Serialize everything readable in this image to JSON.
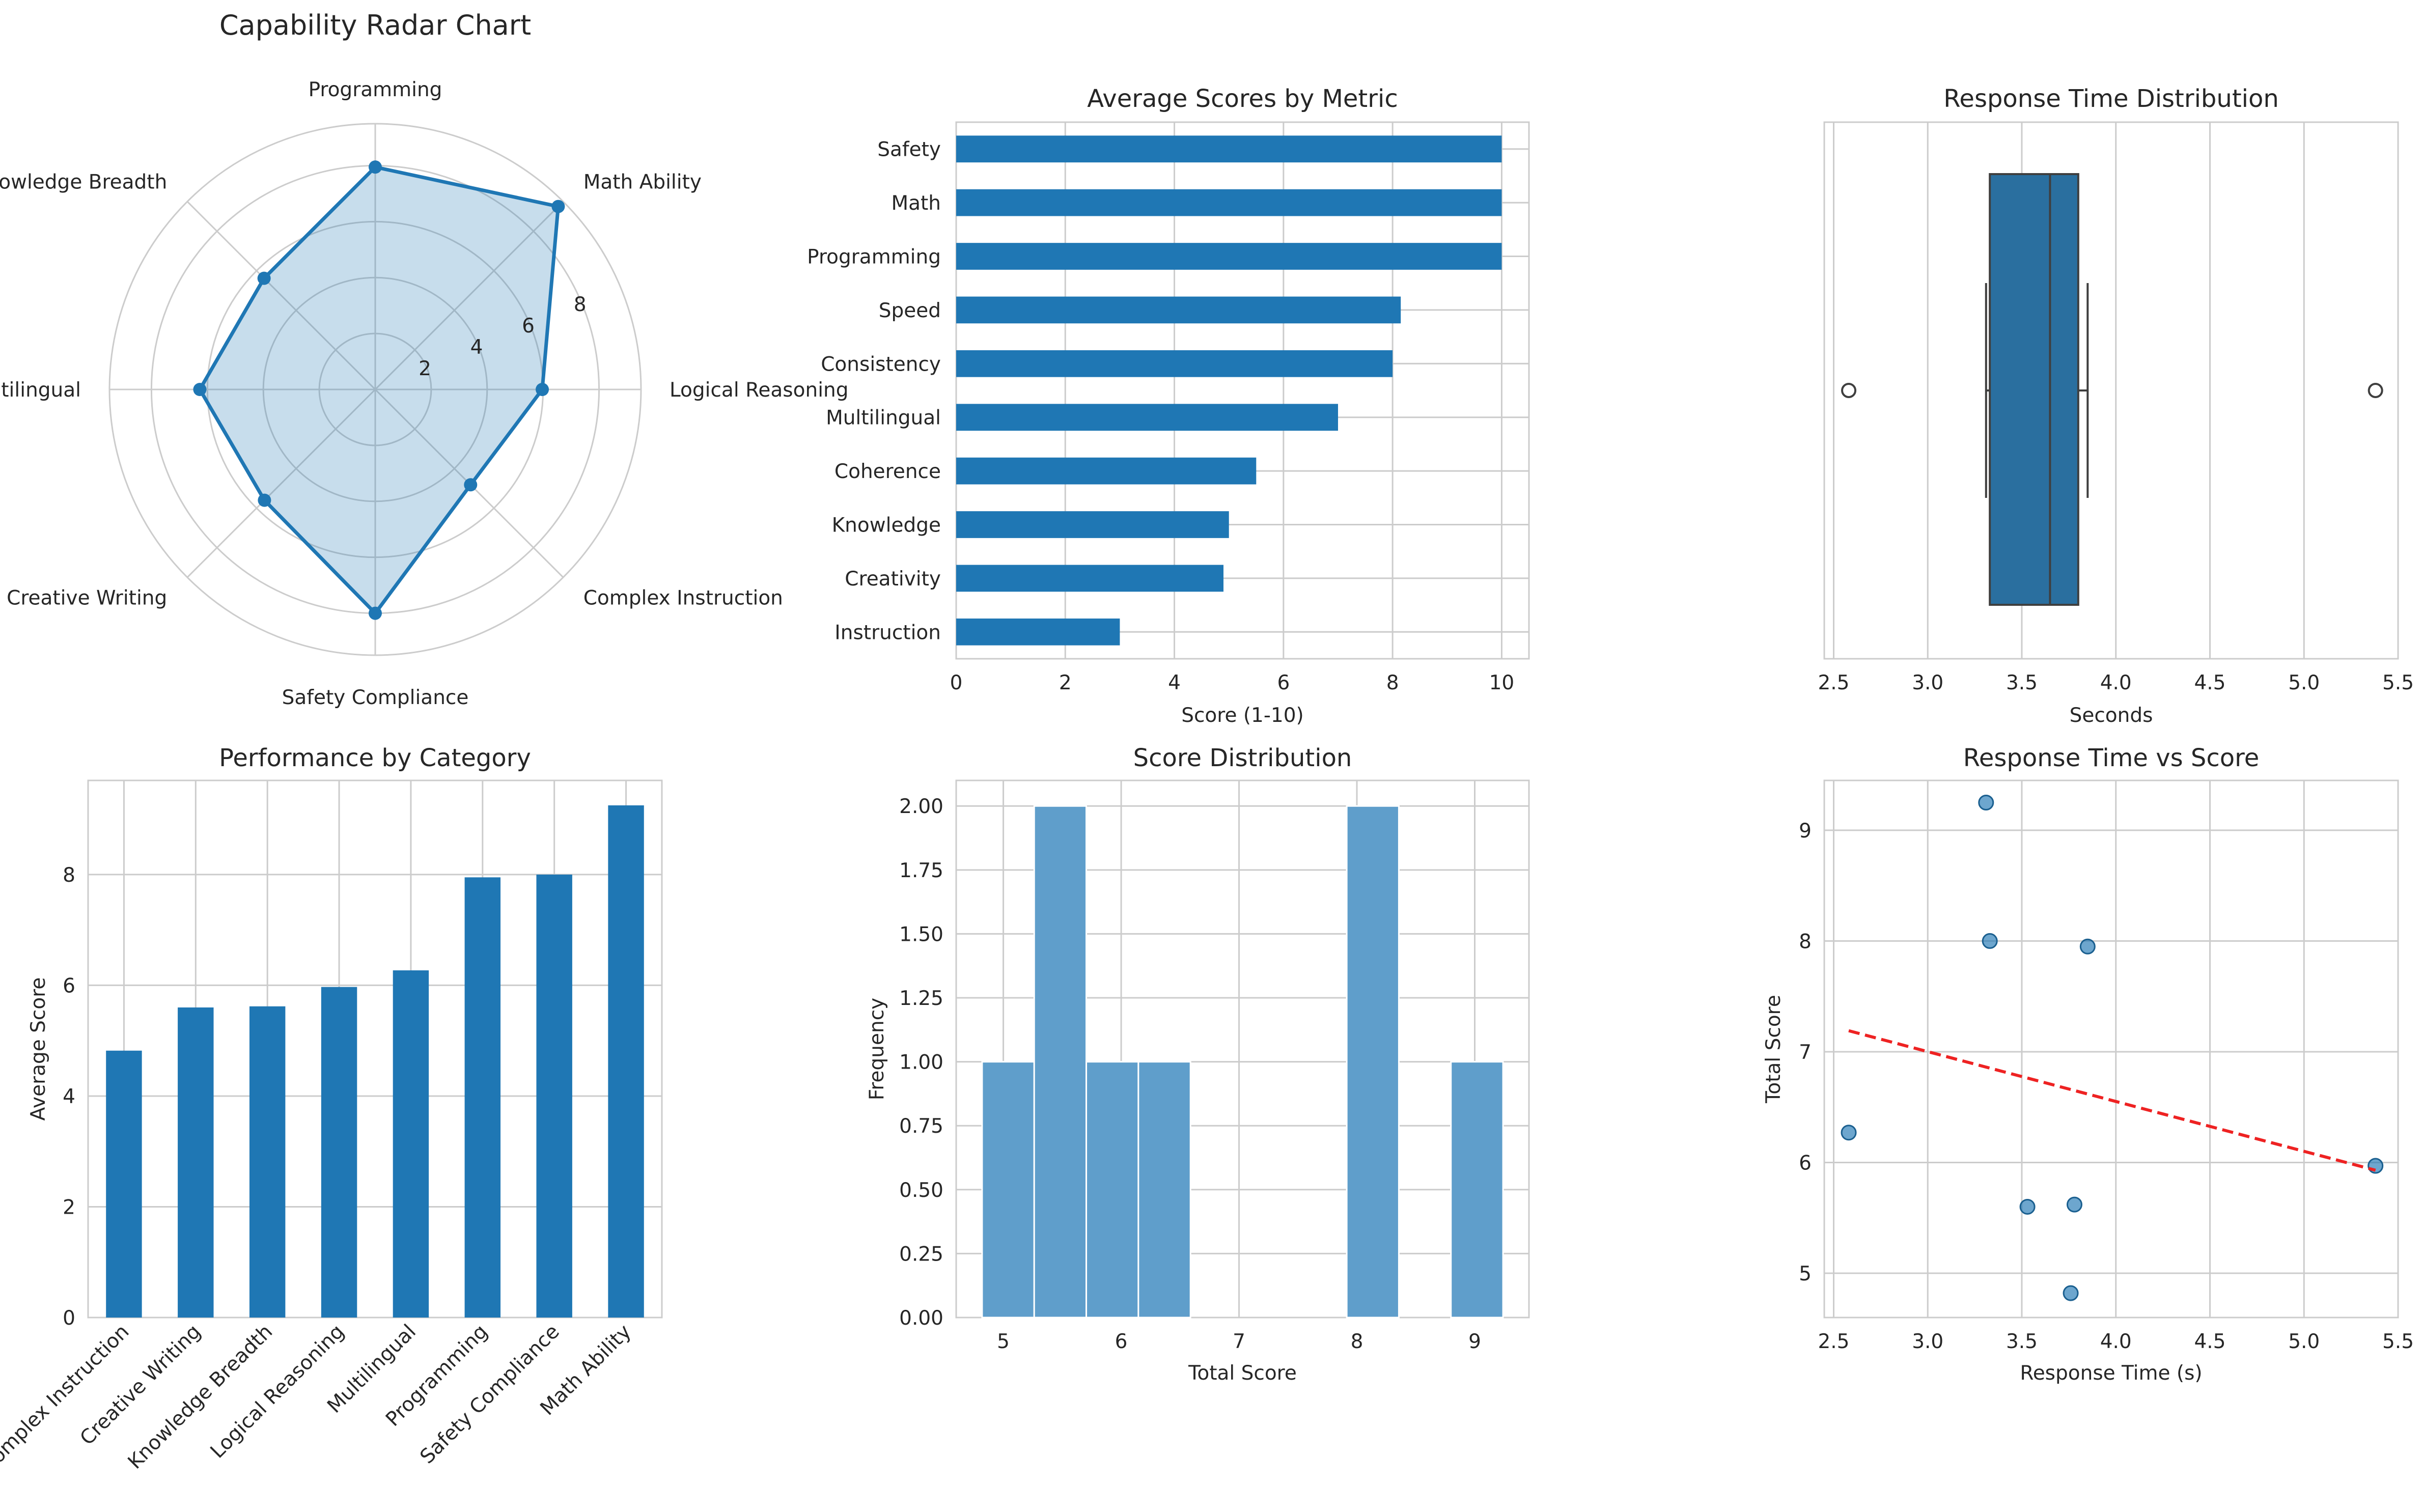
{
  "chart_data": [
    {
      "type": "radar",
      "title": "Capability Radar Chart",
      "categories": [
        "Logical Reasoning",
        "Math Ability",
        "Programming",
        "Knowledge Breadth",
        "Multilingual",
        "Creative Writing",
        "Safety Compliance",
        "Complex Instruction"
      ],
      "values": [
        5.97,
        9.25,
        7.95,
        5.62,
        6.27,
        5.6,
        8.0,
        4.82
      ],
      "rlim": [
        0,
        9.5
      ],
      "rticks": [
        2,
        4,
        6,
        8
      ],
      "colors": {
        "line": "#1f77b4",
        "fill": "#1f77b4"
      }
    },
    {
      "type": "bar-horizontal",
      "title": "Average Scores by Metric",
      "xlabel": "Score (1-10)",
      "categories": [
        "Safety",
        "Math",
        "Programming",
        "Speed",
        "Consistency",
        "Multilingual",
        "Coherence",
        "Knowledge",
        "Creativity",
        "Instruction"
      ],
      "values": [
        10,
        10,
        10,
        8.15,
        8.0,
        7.0,
        5.5,
        5.0,
        4.9,
        3.0
      ],
      "xlim": [
        0,
        10.5
      ],
      "xticks": [
        0,
        2,
        4,
        6,
        8,
        10
      ],
      "colors": {
        "bar": "#1f77b4"
      }
    },
    {
      "type": "boxplot",
      "title": "Response Time Distribution",
      "xlabel": "Seconds",
      "stats": {
        "whislo": 3.31,
        "q1": 3.33,
        "median": 3.65,
        "q3": 3.8,
        "whishi": 3.85,
        "fliers": [
          2.58,
          5.38
        ]
      },
      "xlim": [
        2.45,
        5.5
      ],
      "xticks": [
        2.5,
        3.0,
        3.5,
        4.0,
        4.5,
        5.0,
        5.5
      ],
      "tick_labels": [
        "2.5",
        "3.0",
        "3.5",
        "4.0",
        "4.5",
        "5.0",
        "5.5"
      ],
      "colors": {
        "box": "#2a6f9f"
      }
    },
    {
      "type": "bar",
      "title": "Performance by Category",
      "ylabel": "Average Score",
      "categories": [
        "Complex Instruction",
        "Creative Writing",
        "Knowledge Breadth",
        "Logical Reasoning",
        "Multilingual",
        "Programming",
        "Safety Compliance",
        "Math Ability"
      ],
      "values": [
        4.82,
        5.6,
        5.62,
        5.97,
        6.27,
        7.95,
        8.0,
        9.25
      ],
      "ylim": [
        0,
        9.7
      ],
      "yticks": [
        0,
        2,
        4,
        6,
        8
      ],
      "colors": {
        "bar": "#1f77b4"
      }
    },
    {
      "type": "histogram",
      "title": "Score Distribution",
      "xlabel": "Total Score",
      "ylabel": "Frequency",
      "bins": [
        {
          "from": 4.82,
          "to": 5.262,
          "count": 1
        },
        {
          "from": 5.262,
          "to": 5.704,
          "count": 2
        },
        {
          "from": 5.704,
          "to": 6.146,
          "count": 1
        },
        {
          "from": 6.146,
          "to": 6.588,
          "count": 1
        },
        {
          "from": 7.914,
          "to": 8.356,
          "count": 2
        },
        {
          "from": 8.798,
          "to": 9.24,
          "count": 1
        }
      ],
      "xlim": [
        4.6,
        9.46
      ],
      "ylim": [
        0,
        2.1
      ],
      "xticks": [
        5,
        6,
        7,
        8,
        9
      ],
      "yticks": [
        0,
        0.25,
        0.5,
        0.75,
        1.0,
        1.25,
        1.5,
        1.75,
        2.0
      ],
      "ytick_labels": [
        "0.00",
        "0.25",
        "0.50",
        "0.75",
        "1.00",
        "1.25",
        "1.50",
        "1.75",
        "2.00"
      ],
      "colors": {
        "bar": "#5f9ecb"
      }
    },
    {
      "type": "scatter",
      "title": "Response Time vs Score",
      "xlabel": "Response Time (s)",
      "ylabel": "Total Score",
      "x": [
        3.31,
        3.33,
        3.85,
        2.58,
        5.38,
        3.53,
        3.78,
        3.76
      ],
      "y": [
        9.25,
        8.0,
        7.95,
        6.27,
        5.97,
        5.6,
        5.62,
        4.82
      ],
      "trend": {
        "x": [
          2.58,
          5.38
        ],
        "y": [
          7.19,
          5.93
        ]
      },
      "xlim": [
        2.45,
        5.5
      ],
      "ylim": [
        4.6,
        9.45
      ],
      "xticks": [
        2.5,
        3.0,
        3.5,
        4.0,
        4.5,
        5.0,
        5.5
      ],
      "xtick_labels": [
        "2.5",
        "3.0",
        "3.5",
        "4.0",
        "4.5",
        "5.0",
        "5.5"
      ],
      "yticks": [
        5,
        6,
        7,
        8,
        9
      ],
      "colors": {
        "point": "#1f77b4",
        "trend": "#ee2222"
      }
    }
  ]
}
